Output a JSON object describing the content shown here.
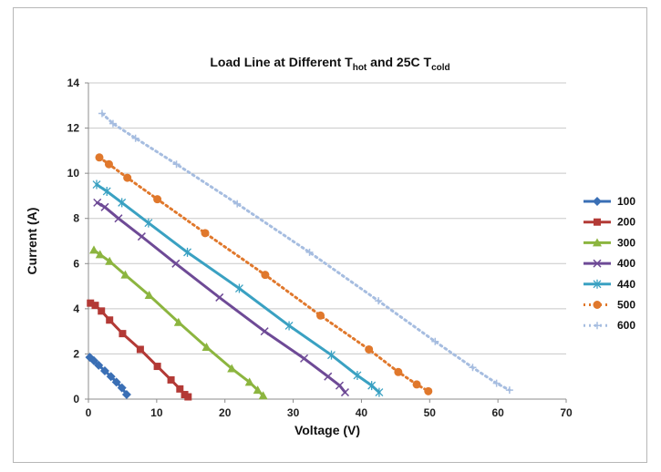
{
  "chart_data": {
    "type": "line",
    "title": "Load Line at Different T",
    "title_sub_hot": "hot",
    "title_mid": " and 25C T",
    "title_sub_cold": "cold",
    "xlabel": "Voltage (V)",
    "ylabel": "Current (A)",
    "xlim": [
      0,
      70
    ],
    "ylim": [
      0,
      14
    ],
    "xticks": [
      0,
      10,
      20,
      30,
      40,
      50,
      60,
      70
    ],
    "yticks": [
      0,
      2,
      4,
      6,
      8,
      10,
      12,
      14
    ],
    "grid": "horizontal",
    "legend_position": "right",
    "series": [
      {
        "name": "100",
        "color": "#3a6fb5",
        "marker": "diamond",
        "dash": "solid",
        "points": [
          [
            0.2,
            1.85
          ],
          [
            0.8,
            1.7
          ],
          [
            1.5,
            1.5
          ],
          [
            2.4,
            1.25
          ],
          [
            3.3,
            1.0
          ],
          [
            4.1,
            0.75
          ],
          [
            4.9,
            0.5
          ],
          [
            5.6,
            0.2
          ]
        ]
      },
      {
        "name": "200",
        "color": "#b33a36",
        "marker": "square",
        "dash": "solid",
        "points": [
          [
            0.3,
            4.25
          ],
          [
            1.0,
            4.15
          ],
          [
            1.9,
            3.9
          ],
          [
            3.1,
            3.5
          ],
          [
            5.0,
            2.9
          ],
          [
            7.6,
            2.2
          ],
          [
            10.1,
            1.45
          ],
          [
            12.1,
            0.85
          ],
          [
            13.4,
            0.45
          ],
          [
            14.1,
            0.2
          ],
          [
            14.6,
            0.1
          ]
        ]
      },
      {
        "name": "300",
        "color": "#8cb53f",
        "marker": "triangle",
        "dash": "solid",
        "points": [
          [
            0.8,
            6.6
          ],
          [
            1.7,
            6.4
          ],
          [
            3.1,
            6.1
          ],
          [
            5.4,
            5.5
          ],
          [
            8.9,
            4.6
          ],
          [
            13.2,
            3.4
          ],
          [
            17.3,
            2.3
          ],
          [
            21.0,
            1.35
          ],
          [
            23.6,
            0.75
          ],
          [
            24.8,
            0.4
          ],
          [
            25.6,
            0.15
          ]
        ]
      },
      {
        "name": "400",
        "color": "#6e4a96",
        "marker": "x",
        "dash": "solid",
        "points": [
          [
            1.3,
            8.7
          ],
          [
            2.4,
            8.5
          ],
          [
            4.4,
            8.0
          ],
          [
            7.8,
            7.2
          ],
          [
            12.8,
            6.0
          ],
          [
            19.2,
            4.5
          ],
          [
            25.8,
            3.0
          ],
          [
            31.6,
            1.8
          ],
          [
            35.1,
            1.0
          ],
          [
            36.8,
            0.6
          ],
          [
            37.6,
            0.3
          ]
        ]
      },
      {
        "name": "440",
        "color": "#3aa1c2",
        "marker": "star",
        "dash": "solid",
        "points": [
          [
            1.2,
            9.5
          ],
          [
            2.7,
            9.2
          ],
          [
            4.9,
            8.7
          ],
          [
            8.8,
            7.8
          ],
          [
            14.5,
            6.5
          ],
          [
            22.1,
            4.9
          ],
          [
            29.4,
            3.25
          ],
          [
            35.6,
            1.95
          ],
          [
            39.4,
            1.05
          ],
          [
            41.5,
            0.6
          ],
          [
            42.6,
            0.3
          ]
        ]
      },
      {
        "name": "500",
        "color": "#e0782c",
        "marker": "circle",
        "dash": "dotted",
        "points": [
          [
            1.6,
            10.7
          ],
          [
            3.0,
            10.4
          ],
          [
            5.7,
            9.8
          ],
          [
            10.1,
            8.85
          ],
          [
            17.1,
            7.35
          ],
          [
            25.9,
            5.5
          ],
          [
            34.0,
            3.7
          ],
          [
            41.1,
            2.2
          ],
          [
            45.4,
            1.2
          ],
          [
            48.1,
            0.65
          ],
          [
            49.8,
            0.35
          ]
        ]
      },
      {
        "name": "600",
        "color": "#a6bde0",
        "marker": "plus",
        "dash": "dotted",
        "points": [
          [
            2.0,
            12.65
          ],
          [
            3.6,
            12.2
          ],
          [
            6.9,
            11.55
          ],
          [
            12.9,
            10.4
          ],
          [
            21.8,
            8.65
          ],
          [
            32.4,
            6.5
          ],
          [
            42.5,
            4.35
          ],
          [
            50.8,
            2.55
          ],
          [
            56.3,
            1.4
          ],
          [
            59.8,
            0.7
          ],
          [
            61.7,
            0.4
          ]
        ]
      }
    ]
  }
}
